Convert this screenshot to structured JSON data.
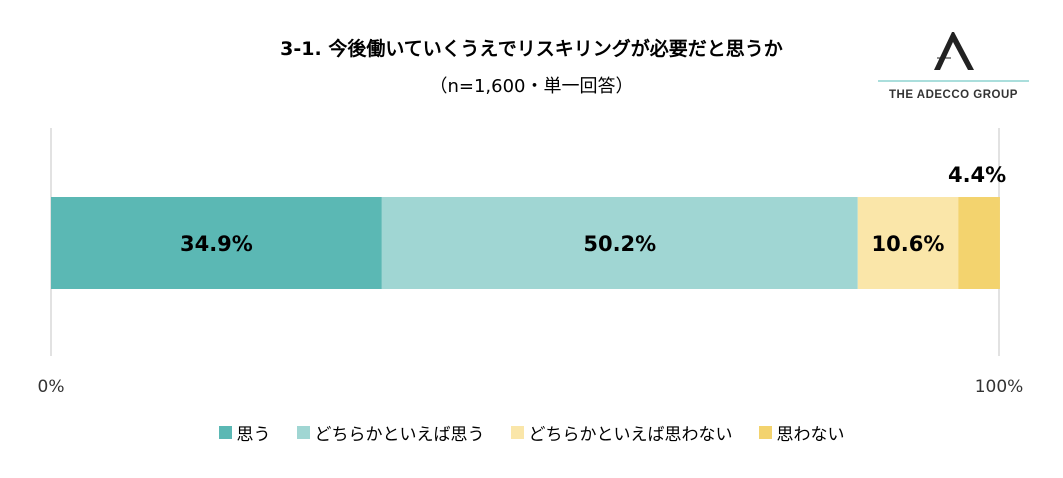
{
  "title": "3-1. 今後働いていくうえでリスキリングが必要だと思うか",
  "subtitle": "（n=1,600・単一回答）",
  "logo": {
    "text": "THE ADECCO GROUP",
    "accent": "#8ED3D0"
  },
  "chart_data": {
    "type": "bar",
    "orientation": "horizontal-stacked-100",
    "categories": [
      "思う",
      "どちらかといえば思う",
      "どちらかといえば思わない",
      "思わない"
    ],
    "values": [
      34.9,
      50.2,
      10.6,
      4.4
    ],
    "labels": [
      "34.9%",
      "50.2%",
      "10.6%",
      "4.4%"
    ],
    "colors": [
      "#5BB8B4",
      "#A0D6D3",
      "#FAE6A9",
      "#F3D36E"
    ],
    "xlim": [
      0,
      100
    ],
    "xticks": [
      "0%",
      "100%"
    ],
    "legend_position": "bottom"
  }
}
